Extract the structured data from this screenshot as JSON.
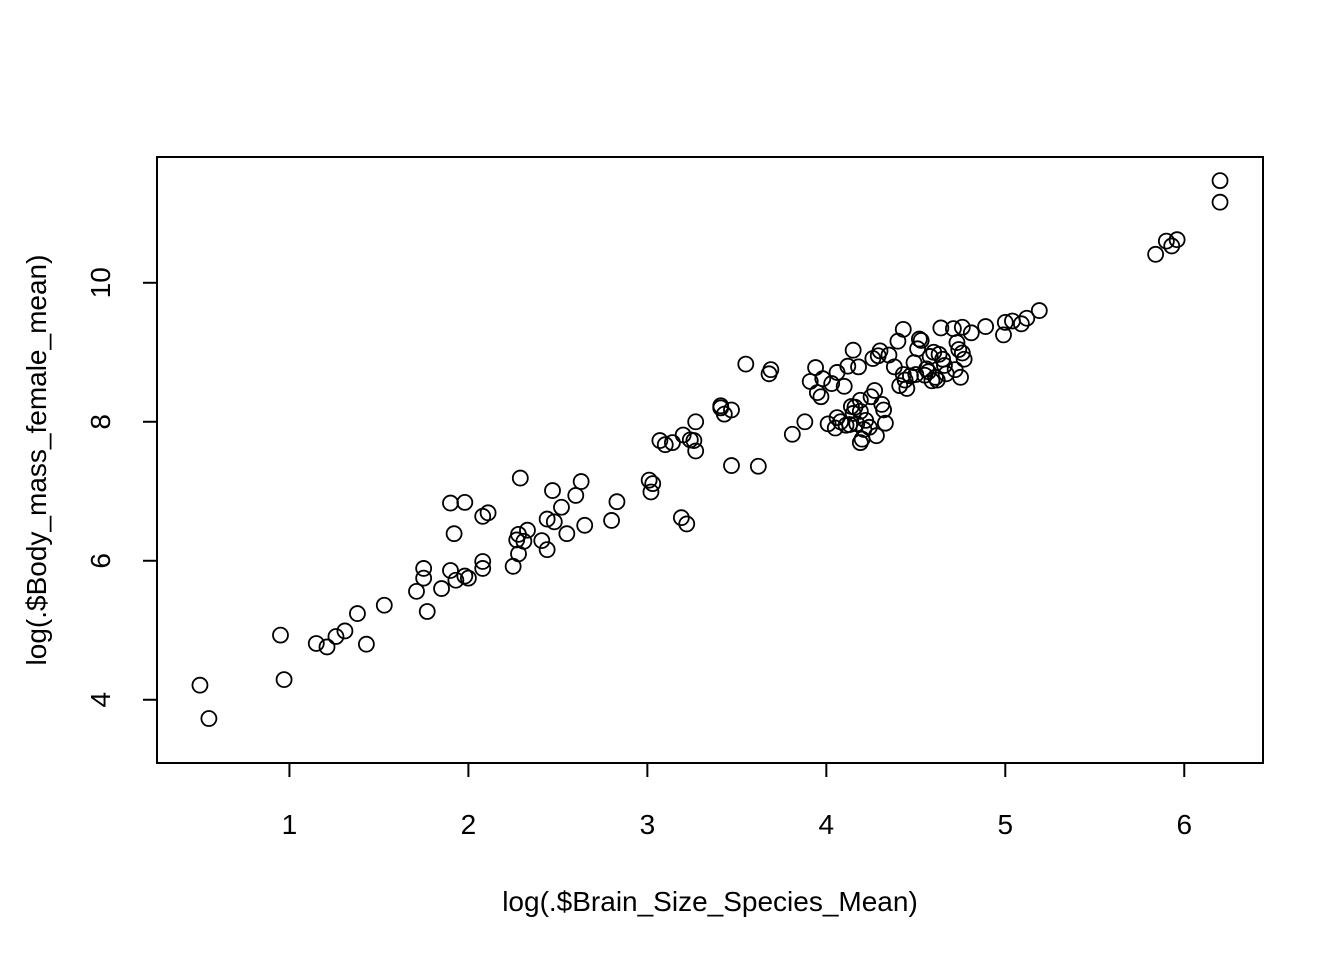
{
  "chart_data": {
    "type": "scatter",
    "title": "",
    "xlabel": "log(.$Brain_Size_Species_Mean)",
    "ylabel": "log(.$Body_mass_female_mean)",
    "xlim": [
      0.26,
      6.44
    ],
    "ylim": [
      3.09,
      11.81
    ],
    "xticks": [
      1,
      2,
      3,
      4,
      5,
      6
    ],
    "yticks": [
      4,
      6,
      8,
      10
    ],
    "xtick_labels": [
      "1",
      "2",
      "3",
      "4",
      "5",
      "6"
    ],
    "ytick_labels": [
      "4",
      "6",
      "8",
      "10"
    ],
    "grid": false,
    "marker": "open-circle",
    "marker_color": "#000000",
    "points": [
      [
        0.5,
        4.21
      ],
      [
        0.55,
        3.73
      ],
      [
        0.95,
        4.93
      ],
      [
        0.97,
        4.29
      ],
      [
        1.15,
        4.81
      ],
      [
        1.21,
        4.76
      ],
      [
        1.26,
        4.91
      ],
      [
        1.31,
        4.99
      ],
      [
        1.38,
        5.24
      ],
      [
        1.43,
        4.8
      ],
      [
        1.53,
        5.36
      ],
      [
        1.71,
        5.56
      ],
      [
        1.75,
        5.89
      ],
      [
        1.75,
        5.75
      ],
      [
        1.77,
        5.27
      ],
      [
        1.85,
        5.6
      ],
      [
        1.9,
        5.86
      ],
      [
        1.9,
        6.83
      ],
      [
        1.92,
        6.39
      ],
      [
        1.93,
        5.72
      ],
      [
        1.98,
        6.84
      ],
      [
        1.98,
        5.78
      ],
      [
        2.0,
        5.75
      ],
      [
        2.08,
        5.89
      ],
      [
        2.08,
        5.99
      ],
      [
        2.08,
        6.64
      ],
      [
        2.11,
        6.69
      ],
      [
        2.25,
        5.92
      ],
      [
        2.27,
        6.3
      ],
      [
        2.28,
        6.1
      ],
      [
        2.28,
        6.38
      ],
      [
        2.29,
        7.19
      ],
      [
        2.31,
        6.28
      ],
      [
        2.33,
        6.44
      ],
      [
        2.41,
        6.29
      ],
      [
        2.44,
        6.16
      ],
      [
        2.44,
        6.6
      ],
      [
        2.47,
        7.01
      ],
      [
        2.48,
        6.56
      ],
      [
        2.52,
        6.77
      ],
      [
        2.55,
        6.39
      ],
      [
        2.6,
        6.94
      ],
      [
        2.63,
        7.14
      ],
      [
        2.65,
        6.51
      ],
      [
        2.8,
        6.58
      ],
      [
        2.83,
        6.85
      ],
      [
        3.01,
        7.16
      ],
      [
        3.02,
        6.99
      ],
      [
        3.03,
        7.11
      ],
      [
        3.07,
        7.73
      ],
      [
        3.1,
        7.67
      ],
      [
        3.14,
        7.7
      ],
      [
        3.19,
        6.62
      ],
      [
        3.2,
        7.81
      ],
      [
        3.22,
        6.53
      ],
      [
        3.24,
        7.74
      ],
      [
        3.26,
        7.73
      ],
      [
        3.27,
        7.58
      ],
      [
        3.27,
        8.0
      ],
      [
        3.41,
        8.23
      ],
      [
        3.41,
        8.2
      ],
      [
        3.43,
        8.11
      ],
      [
        3.47,
        8.17
      ],
      [
        3.47,
        7.37
      ],
      [
        3.55,
        8.83
      ],
      [
        3.62,
        7.36
      ],
      [
        3.68,
        8.69
      ],
      [
        3.69,
        8.75
      ],
      [
        3.81,
        7.82
      ],
      [
        3.88,
        8.0
      ],
      [
        3.91,
        8.58
      ],
      [
        3.94,
        8.78
      ],
      [
        3.95,
        8.42
      ],
      [
        3.97,
        8.36
      ],
      [
        3.98,
        8.62
      ],
      [
        4.01,
        7.97
      ],
      [
        4.03,
        8.55
      ],
      [
        4.05,
        7.91
      ],
      [
        4.06,
        8.06
      ],
      [
        4.06,
        8.71
      ],
      [
        4.08,
        8.0
      ],
      [
        4.1,
        8.51
      ],
      [
        4.11,
        7.95
      ],
      [
        4.12,
        8.8
      ],
      [
        4.13,
        7.96
      ],
      [
        4.14,
        8.22
      ],
      [
        4.15,
        8.12
      ],
      [
        4.15,
        9.03
      ],
      [
        4.16,
        8.21
      ],
      [
        4.17,
        7.97
      ],
      [
        4.18,
        8.79
      ],
      [
        4.19,
        7.7
      ],
      [
        4.19,
        8.15
      ],
      [
        4.19,
        8.31
      ],
      [
        4.2,
        7.75
      ],
      [
        4.21,
        7.89
      ],
      [
        4.22,
        8.02
      ],
      [
        4.24,
        7.92
      ],
      [
        4.25,
        8.36
      ],
      [
        4.26,
        8.91
      ],
      [
        4.27,
        8.45
      ],
      [
        4.28,
        7.8
      ],
      [
        4.29,
        8.95
      ],
      [
        4.3,
        9.02
      ],
      [
        4.31,
        8.25
      ],
      [
        4.32,
        8.17
      ],
      [
        4.33,
        7.98
      ],
      [
        4.35,
        8.96
      ],
      [
        4.38,
        8.79
      ],
      [
        4.4,
        9.16
      ],
      [
        4.41,
        8.52
      ],
      [
        4.43,
        8.68
      ],
      [
        4.43,
        9.33
      ],
      [
        4.44,
        8.6
      ],
      [
        4.45,
        8.48
      ],
      [
        4.47,
        8.66
      ],
      [
        4.49,
        8.85
      ],
      [
        4.5,
        8.68
      ],
      [
        4.51,
        9.05
      ],
      [
        4.52,
        9.19
      ],
      [
        4.53,
        9.17
      ],
      [
        4.55,
        8.67
      ],
      [
        4.56,
        8.76
      ],
      [
        4.57,
        8.72
      ],
      [
        4.58,
        8.94
      ],
      [
        4.59,
        8.59
      ],
      [
        4.6,
        9.0
      ],
      [
        4.61,
        8.64
      ],
      [
        4.62,
        8.6
      ],
      [
        4.63,
        8.97
      ],
      [
        4.64,
        9.35
      ],
      [
        4.65,
        8.9
      ],
      [
        4.66,
        8.81
      ],
      [
        4.67,
        8.69
      ],
      [
        4.71,
        9.34
      ],
      [
        4.72,
        8.75
      ],
      [
        4.73,
        9.14
      ],
      [
        4.74,
        9.04
      ],
      [
        4.75,
        8.64
      ],
      [
        4.76,
        8.99
      ],
      [
        4.76,
        9.36
      ],
      [
        4.77,
        8.9
      ],
      [
        4.81,
        9.28
      ],
      [
        4.89,
        9.37
      ],
      [
        4.99,
        9.25
      ],
      [
        5.0,
        9.43
      ],
      [
        5.04,
        9.45
      ],
      [
        5.09,
        9.41
      ],
      [
        5.12,
        9.49
      ],
      [
        5.19,
        9.6
      ],
      [
        5.84,
        10.41
      ],
      [
        5.9,
        10.6
      ],
      [
        5.93,
        10.53
      ],
      [
        5.96,
        10.62
      ],
      [
        6.2,
        11.16
      ],
      [
        6.2,
        11.47
      ]
    ]
  }
}
